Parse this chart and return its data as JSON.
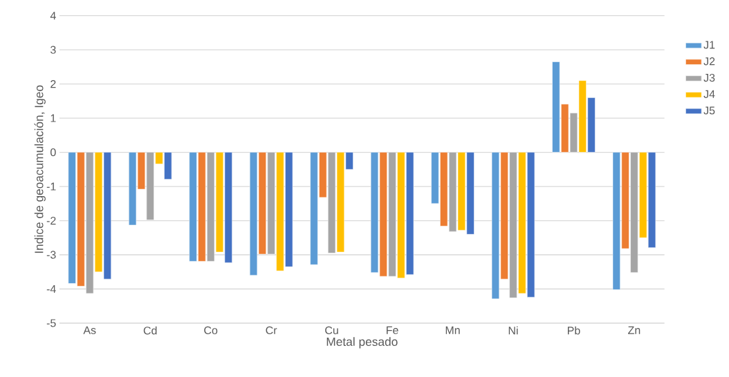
{
  "chart_data": {
    "type": "bar",
    "xlabel": "Metal pesado",
    "ylabel": "Indice de geoacumulación, Igeo",
    "categories": [
      "As",
      "Cd",
      "Co",
      "Cr",
      "Cu",
      "Fe",
      "Mn",
      "Ni",
      "Pb",
      "Zn"
    ],
    "series": [
      {
        "name": "J1",
        "color": "#5b9bd5",
        "values": [
          -3.84,
          -2.13,
          -3.19,
          -3.6,
          -3.29,
          -3.52,
          -1.5,
          -4.29,
          2.65,
          -4.02
        ]
      },
      {
        "name": "J2",
        "color": "#ed7d31",
        "values": [
          -3.92,
          -1.08,
          -3.19,
          -2.98,
          -1.32,
          -3.63,
          -2.16,
          -3.71,
          1.41,
          -2.82
        ]
      },
      {
        "name": "J3",
        "color": "#a5a5a5",
        "values": [
          -4.13,
          -1.98,
          -3.19,
          -2.98,
          -2.95,
          -3.63,
          -2.32,
          -4.26,
          1.15,
          -3.52
        ]
      },
      {
        "name": "J4",
        "color": "#ffc000",
        "values": [
          -3.5,
          -0.34,
          -2.92,
          -3.47,
          -2.92,
          -3.68,
          -2.28,
          -4.13,
          2.1,
          -2.5
        ]
      },
      {
        "name": "J5",
        "color": "#4472c4",
        "values": [
          -3.71,
          -0.79,
          -3.23,
          -3.35,
          -0.5,
          -3.58,
          -2.4,
          -4.24,
          1.6,
          -2.79
        ]
      }
    ],
    "ylim": [
      -5,
      4
    ],
    "yticks": [
      4,
      3,
      2,
      1,
      0,
      -1,
      -2,
      -3,
      -4,
      -5
    ],
    "grid": "y",
    "legend": "right"
  }
}
